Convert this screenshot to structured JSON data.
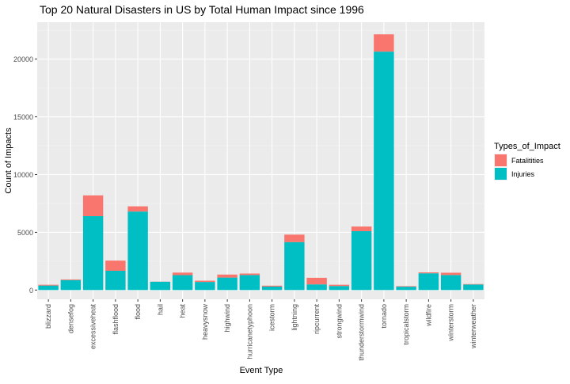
{
  "chart_data": {
    "type": "bar",
    "stacked": true,
    "title": "Top 20 Natural Disasters in US by Total Human Impact since 1996",
    "xlabel": "Event Type",
    "ylabel": "Count of Impacts",
    "ylim": [
      -800,
      23200
    ],
    "yticks": [
      0,
      5000,
      10000,
      15000,
      20000
    ],
    "grid": true,
    "legend_position": "right",
    "legend_title": "Types_of_Impact",
    "categories": [
      "blizzard",
      "densefog",
      "excessiveheat",
      "flashflood",
      "flood",
      "hail",
      "heat",
      "heavysnow",
      "highwind",
      "hurricanetyphoon",
      "icestorm",
      "lightning",
      "ripcurrent",
      "strongwind",
      "thunderstormwind",
      "tornado",
      "tropicalstorm",
      "wildfire",
      "winterstorm",
      "winterweather"
    ],
    "series": [
      {
        "name": "Injuries",
        "color": "#00BFC4",
        "values": [
          390,
          860,
          6400,
          1670,
          6800,
          720,
          1290,
          700,
          1080,
          1300,
          300,
          4150,
          490,
          350,
          5100,
          20650,
          290,
          1450,
          1300,
          480
        ]
      },
      {
        "name": "Fatalitities",
        "color": "#F8766D",
        "values": [
          70,
          60,
          1800,
          880,
          450,
          10,
          220,
          110,
          260,
          130,
          80,
          650,
          570,
          110,
          400,
          1500,
          50,
          80,
          200,
          40
        ]
      }
    ]
  }
}
